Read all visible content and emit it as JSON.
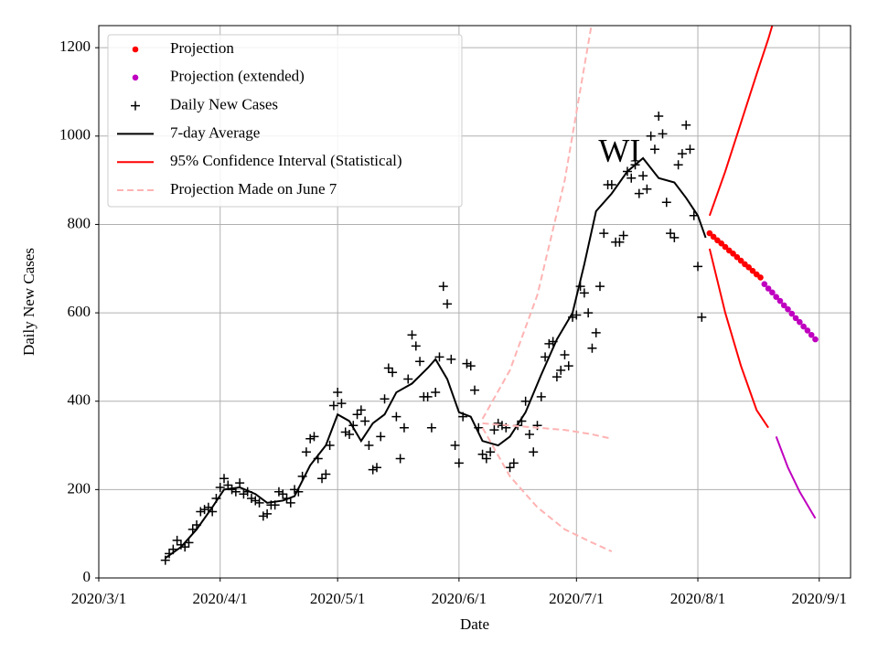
{
  "chart_data": {
    "type": "line",
    "xlabel": "Date",
    "ylabel": "Daily New Cases",
    "xlim": [
      "2020-03-01",
      "2020-09-09"
    ],
    "xticks": [
      {
        "value": "2020-03-01",
        "label": "2020/3/1"
      },
      {
        "value": "2020-04-01",
        "label": "2020/4/1"
      },
      {
        "value": "2020-05-01",
        "label": "2020/5/1"
      },
      {
        "value": "2020-06-01",
        "label": "2020/6/1"
      },
      {
        "value": "2020-07-01",
        "label": "2020/7/1"
      },
      {
        "value": "2020-08-01",
        "label": "2020/8/1"
      },
      {
        "value": "2020-09-01",
        "label": "2020/9/1"
      }
    ],
    "ylim": [
      0,
      1250
    ],
    "yticks": [
      0,
      200,
      400,
      600,
      800,
      1000,
      1200
    ],
    "grid": true,
    "legend": "upper left",
    "annotation": {
      "text": "WI",
      "x": "2020-07-12",
      "y": 960
    },
    "series": [
      {
        "name": "Projection",
        "color": "#ff0000",
        "marker": "dot",
        "x": [
          "2020-08-04",
          "2020-08-05",
          "2020-08-06",
          "2020-08-07",
          "2020-08-08",
          "2020-08-09",
          "2020-08-10",
          "2020-08-11",
          "2020-08-12",
          "2020-08-13",
          "2020-08-14",
          "2020-08-15",
          "2020-08-16",
          "2020-08-17"
        ],
        "values": [
          780,
          772,
          764,
          757,
          749,
          741,
          734,
          726,
          718,
          710,
          703,
          695,
          687,
          680
        ]
      },
      {
        "name": "Projection (extended)",
        "color": "#bf00bf",
        "marker": "dot",
        "x": [
          "2020-08-18",
          "2020-08-19",
          "2020-08-20",
          "2020-08-21",
          "2020-08-22",
          "2020-08-23",
          "2020-08-24",
          "2020-08-25",
          "2020-08-26",
          "2020-08-27",
          "2020-08-28",
          "2020-08-29",
          "2020-08-30",
          "2020-08-31"
        ],
        "values": [
          665,
          655,
          646,
          636,
          627,
          617,
          608,
          598,
          588,
          579,
          569,
          560,
          550,
          540
        ]
      },
      {
        "name": "Daily New Cases",
        "color": "#000000",
        "marker": "plus",
        "x": [
          "2020-03-18",
          "2020-03-19",
          "2020-03-20",
          "2020-03-21",
          "2020-03-22",
          "2020-03-23",
          "2020-03-24",
          "2020-03-25",
          "2020-03-26",
          "2020-03-27",
          "2020-03-28",
          "2020-03-29",
          "2020-03-30",
          "2020-03-31",
          "2020-04-01",
          "2020-04-02",
          "2020-04-03",
          "2020-04-04",
          "2020-04-05",
          "2020-04-06",
          "2020-04-07",
          "2020-04-08",
          "2020-04-09",
          "2020-04-10",
          "2020-04-11",
          "2020-04-12",
          "2020-04-13",
          "2020-04-14",
          "2020-04-15",
          "2020-04-16",
          "2020-04-17",
          "2020-04-18",
          "2020-04-19",
          "2020-04-20",
          "2020-04-21",
          "2020-04-22",
          "2020-04-23",
          "2020-04-24",
          "2020-04-25",
          "2020-04-26",
          "2020-04-27",
          "2020-04-28",
          "2020-04-29",
          "2020-04-30",
          "2020-05-01",
          "2020-05-02",
          "2020-05-03",
          "2020-05-04",
          "2020-05-05",
          "2020-05-06",
          "2020-05-07",
          "2020-05-08",
          "2020-05-09",
          "2020-05-10",
          "2020-05-11",
          "2020-05-12",
          "2020-05-13",
          "2020-05-14",
          "2020-05-15",
          "2020-05-16",
          "2020-05-17",
          "2020-05-18",
          "2020-05-19",
          "2020-05-20",
          "2020-05-21",
          "2020-05-22",
          "2020-05-23",
          "2020-05-24",
          "2020-05-25",
          "2020-05-26",
          "2020-05-27",
          "2020-05-28",
          "2020-05-29",
          "2020-05-30",
          "2020-05-31",
          "2020-06-01",
          "2020-06-02",
          "2020-06-03",
          "2020-06-04",
          "2020-06-05",
          "2020-06-06",
          "2020-06-07",
          "2020-06-08",
          "2020-06-09",
          "2020-06-10",
          "2020-06-11",
          "2020-06-12",
          "2020-06-13",
          "2020-06-14",
          "2020-06-15",
          "2020-06-16",
          "2020-06-17",
          "2020-06-18",
          "2020-06-19",
          "2020-06-20",
          "2020-06-21",
          "2020-06-22",
          "2020-06-23",
          "2020-06-24",
          "2020-06-25",
          "2020-06-26",
          "2020-06-27",
          "2020-06-28",
          "2020-06-29",
          "2020-06-30",
          "2020-07-01",
          "2020-07-02",
          "2020-07-03",
          "2020-07-04",
          "2020-07-05",
          "2020-07-06",
          "2020-07-07",
          "2020-07-08",
          "2020-07-09",
          "2020-07-10",
          "2020-07-11",
          "2020-07-12",
          "2020-07-13",
          "2020-07-14",
          "2020-07-15",
          "2020-07-16",
          "2020-07-17",
          "2020-07-18",
          "2020-07-19",
          "2020-07-20",
          "2020-07-21",
          "2020-07-22",
          "2020-07-23",
          "2020-07-24",
          "2020-07-25",
          "2020-07-26",
          "2020-07-27",
          "2020-07-28",
          "2020-07-29",
          "2020-07-30",
          "2020-07-31",
          "2020-08-01",
          "2020-08-02"
        ],
        "values": [
          40,
          55,
          65,
          85,
          75,
          70,
          80,
          110,
          120,
          150,
          155,
          160,
          150,
          180,
          205,
          225,
          210,
          200,
          195,
          215,
          190,
          195,
          180,
          175,
          170,
          140,
          145,
          165,
          165,
          195,
          190,
          180,
          170,
          200,
          195,
          230,
          285,
          315,
          320,
          270,
          225,
          235,
          300,
          390,
          420,
          395,
          330,
          325,
          345,
          370,
          380,
          355,
          300,
          245,
          250,
          320,
          405,
          475,
          465,
          365,
          270,
          340,
          450,
          550,
          525,
          490,
          410,
          410,
          340,
          420,
          500,
          660,
          620,
          495,
          300,
          260,
          365,
          485,
          480,
          425,
          340,
          280,
          270,
          285,
          335,
          350,
          345,
          340,
          250,
          260,
          345,
          355,
          400,
          325,
          285,
          345,
          410,
          500,
          530,
          535,
          455,
          470,
          505,
          480,
          590,
          595,
          660,
          645,
          600,
          520,
          555,
          660,
          780,
          890,
          890,
          760,
          760,
          775,
          920,
          905,
          935,
          870,
          910,
          880,
          1000,
          970,
          1045,
          1005,
          850,
          780,
          770,
          935,
          960,
          1025,
          970,
          820,
          705,
          590
        ]
      },
      {
        "name": "7-day Average",
        "color": "#000000",
        "line": "solid",
        "x": [
          "2020-03-18",
          "2020-03-22",
          "2020-03-26",
          "2020-03-30",
          "2020-04-02",
          "2020-04-06",
          "2020-04-10",
          "2020-04-13",
          "2020-04-17",
          "2020-04-20",
          "2020-04-24",
          "2020-04-28",
          "2020-05-01",
          "2020-05-04",
          "2020-05-07",
          "2020-05-10",
          "2020-05-13",
          "2020-05-16",
          "2020-05-20",
          "2020-05-24",
          "2020-05-26",
          "2020-05-29",
          "2020-06-01",
          "2020-06-04",
          "2020-06-07",
          "2020-06-11",
          "2020-06-14",
          "2020-06-18",
          "2020-06-22",
          "2020-06-26",
          "2020-06-30",
          "2020-07-03",
          "2020-07-06",
          "2020-07-10",
          "2020-07-14",
          "2020-07-18",
          "2020-07-22",
          "2020-07-26",
          "2020-07-29",
          "2020-08-01",
          "2020-08-03"
        ],
        "values": [
          45,
          70,
          110,
          160,
          200,
          205,
          190,
          170,
          175,
          185,
          255,
          300,
          370,
          355,
          310,
          350,
          370,
          420,
          440,
          475,
          495,
          450,
          375,
          365,
          310,
          300,
          320,
          375,
          460,
          540,
          600,
          710,
          830,
          870,
          920,
          950,
          905,
          895,
          860,
          820,
          770
        ]
      },
      {
        "name": "95% Confidence Interval (Statistical)",
        "color": "#ff0000",
        "line": "solid",
        "x": [
          "2020-08-04",
          "2020-08-08",
          "2020-08-12",
          "2020-08-16",
          "2020-08-19",
          "2020-08-21"
        ],
        "upper": [
          820,
          920,
          1030,
          1140,
          1220,
          1280
        ],
        "lower": [
          745,
          600,
          480,
          380,
          340,
          null
        ]
      },
      {
        "name": "Projection Made on June 7",
        "color": "#ffb3b3",
        "line": "dashed",
        "x": [
          "2020-06-07",
          "2020-06-14",
          "2020-06-21",
          "2020-06-28",
          "2020-07-05",
          "2020-07-10"
        ],
        "values": [
          350,
          345,
          340,
          335,
          325,
          315
        ],
        "lower": [
          340,
          230,
          160,
          110,
          80,
          60
        ],
        "upper": [
          360,
          470,
          640,
          900,
          1260,
          null
        ]
      },
      {
        "color": "#bf00bf",
        "line": "solid",
        "x": [
          "2020-08-21",
          "2020-08-24",
          "2020-08-27",
          "2020-08-31"
        ],
        "lower": [
          320,
          250,
          195,
          135
        ]
      }
    ]
  }
}
